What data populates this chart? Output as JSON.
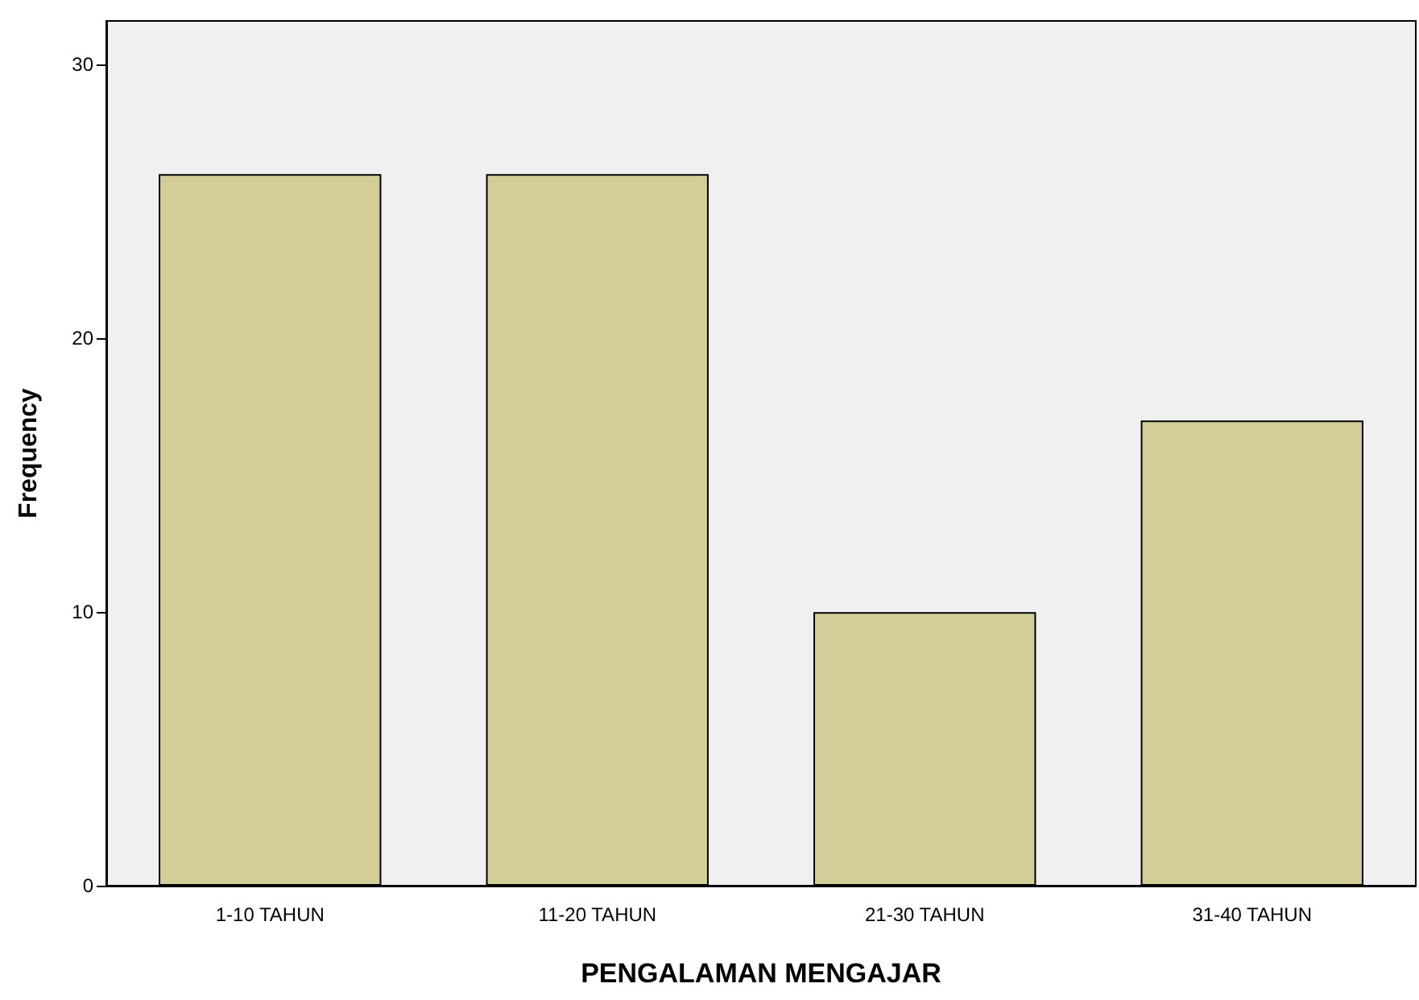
{
  "chart_data": {
    "type": "bar",
    "xlabel": "PENGALAMAN MENGAJAR",
    "ylabel": "Frequency",
    "categories": [
      "1-10 TAHUN",
      "11-20 TAHUN",
      "21-30 TAHUN",
      "31-40 TAHUN"
    ],
    "values": [
      26,
      26,
      10,
      17
    ],
    "color": "#d3ce97",
    "ylim": [
      0,
      31.6
    ],
    "yticks": [
      0,
      10,
      20,
      30
    ],
    "grid": false
  }
}
